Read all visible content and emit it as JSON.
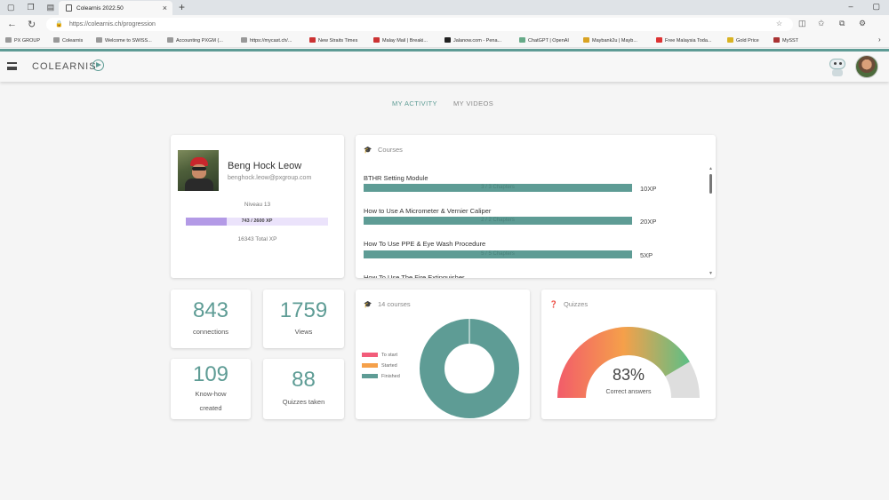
{
  "browser": {
    "tab_title": "Colearnis 2022.50",
    "url": "https://colearnis.ch/progression",
    "bookmarks": [
      "PX GROUP",
      "Colearnis",
      "Welcome to SWISS...",
      "Accounting PXGM (...",
      "https://mycast.ch/...",
      "New Straits Times",
      "Malay Mail | Breaki...",
      "Jalanow.com - Pena...",
      "ChatGPT | OpenAI",
      "Maybank2u | Mayb...",
      "Free Malaysia Toda...",
      "Gold Price",
      "MySST"
    ]
  },
  "app": {
    "logo_text": "COLEARNIS"
  },
  "nav_tabs": [
    "MY ACTIVITY",
    "MY VIDEOS"
  ],
  "profile": {
    "name": "Beng Hock Leow",
    "email": "benghock.leow@pxgroup.com",
    "level": "Niveau 13",
    "xp_label": "743 / 2600 XP",
    "xp_progress": 0.286,
    "total_xp": "16343 Total XP"
  },
  "courses_card": {
    "title": "Courses",
    "items": [
      {
        "title": "BTHR Setting Module",
        "chapters": "3 / 3 Chapters",
        "xp": "10XP"
      },
      {
        "title": "How to Use A Micrometer & Vernier Caliper",
        "chapters": "2 / 2 Chapters",
        "xp": "20XP"
      },
      {
        "title": "How To Use PPE & Eye Wash Procedure",
        "chapters": "5 / 5 Chapters",
        "xp": "5XP"
      },
      {
        "title": "How To Use The Fire Extinguisher",
        "chapters": "",
        "xp": ""
      }
    ]
  },
  "stats": [
    {
      "value": "843",
      "label": "connections"
    },
    {
      "value": "1759",
      "label": "Views"
    },
    {
      "value": "109",
      "label_line1": "Know-how",
      "label_line2": "created"
    },
    {
      "value": "88",
      "label": "Quizzes taken"
    }
  ],
  "courses_donut": {
    "title": "14 courses",
    "legend": [
      {
        "label": "To start",
        "color": "#f25c7a"
      },
      {
        "label": "Started",
        "color": "#f5a04a"
      },
      {
        "label": "Finished",
        "color": "#5e9c95"
      }
    ]
  },
  "quizzes": {
    "title": "Quizzes",
    "percent": "83%",
    "percent_value": 83,
    "label": "Correct answers"
  }
}
